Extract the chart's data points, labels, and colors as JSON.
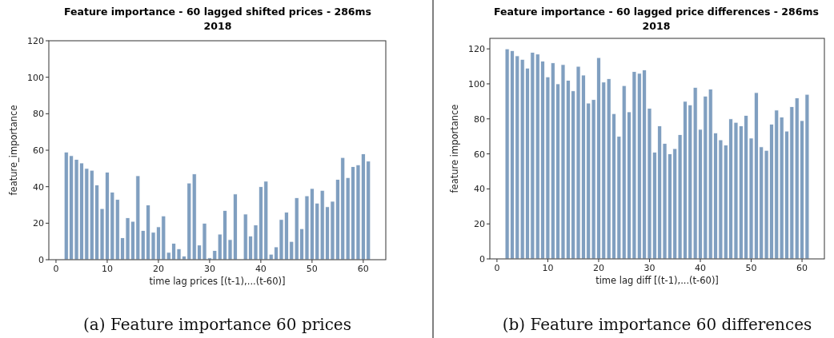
{
  "chart_data": [
    {
      "type": "bar",
      "title": "Feature importance - 60 lagged shifted prices - 286ms",
      "subtitle": "2018",
      "xlabel": "time lag prices [(t-1),...(t-60)]",
      "ylabel": "feature_importance",
      "annotations": [
        "(a) Feature importance 60 prices"
      ],
      "x": [
        2,
        3,
        4,
        5,
        6,
        7,
        8,
        9,
        10,
        11,
        12,
        13,
        14,
        15,
        16,
        17,
        18,
        19,
        20,
        21,
        22,
        23,
        24,
        25,
        26,
        27,
        28,
        29,
        30,
        31,
        32,
        33,
        34,
        35,
        36,
        37,
        38,
        39,
        40,
        41,
        42,
        43,
        44,
        45,
        46,
        47,
        48,
        49,
        50,
        51,
        52,
        53,
        54,
        55,
        56,
        57,
        58,
        59,
        60,
        61
      ],
      "values": [
        59,
        57,
        55,
        53,
        50,
        49,
        41,
        28,
        48,
        37,
        33,
        12,
        23,
        21,
        46,
        16,
        30,
        15,
        18,
        24,
        4,
        9,
        6,
        2,
        42,
        47,
        8,
        20,
        1,
        5,
        14,
        27,
        11,
        36,
        0,
        25,
        13,
        19,
        40,
        43,
        3,
        7,
        22,
        26,
        10,
        34,
        17,
        35,
        39,
        31,
        38,
        29,
        32,
        44,
        56,
        45,
        51,
        52,
        58,
        54
      ],
      "color": "#809fc0",
      "xlim": [
        -1.4,
        64.4
      ],
      "xticks": [
        0,
        10,
        20,
        30,
        40,
        50,
        60
      ],
      "ylim": [
        0,
        120
      ],
      "yticks": [
        0,
        20,
        40,
        60,
        80,
        100,
        120
      ],
      "grid": false
    },
    {
      "type": "bar",
      "title": "Feature importance - 60 lagged price differences - 286ms",
      "subtitle": "2018",
      "xlabel": "time lag diff [(t-1),...(t-60)]",
      "ylabel": "feature importance",
      "annotations": [
        "(b) Feature importance 60 differences"
      ],
      "x": [
        2,
        3,
        4,
        5,
        6,
        7,
        8,
        9,
        10,
        11,
        12,
        13,
        14,
        15,
        16,
        17,
        18,
        19,
        20,
        21,
        22,
        23,
        24,
        25,
        26,
        27,
        28,
        29,
        30,
        31,
        32,
        33,
        34,
        35,
        36,
        37,
        38,
        39,
        40,
        41,
        42,
        43,
        44,
        45,
        46,
        47,
        48,
        49,
        50,
        51,
        52,
        53,
        54,
        55,
        56,
        57,
        58,
        59,
        60,
        61
      ],
      "values": [
        120,
        119,
        116,
        114,
        109,
        118,
        117,
        113,
        104,
        112,
        100,
        111,
        102,
        96,
        110,
        105,
        89,
        91,
        115,
        101,
        103,
        83,
        70,
        99,
        84,
        107,
        106,
        108,
        86,
        61,
        76,
        66,
        60,
        63,
        71,
        90,
        88,
        98,
        74,
        93,
        97,
        72,
        68,
        65,
        80,
        78,
        76,
        82,
        69,
        95,
        64,
        62,
        77,
        85,
        81,
        73,
        87,
        92,
        79,
        94
      ],
      "color": "#809fc0",
      "xlim": [
        -1.4,
        64.4
      ],
      "xticks": [
        0,
        10,
        20,
        30,
        40,
        50,
        60
      ],
      "ylim": [
        0,
        126
      ],
      "yticks": [
        0,
        20,
        40,
        60,
        80,
        100,
        120
      ],
      "grid": false
    }
  ]
}
